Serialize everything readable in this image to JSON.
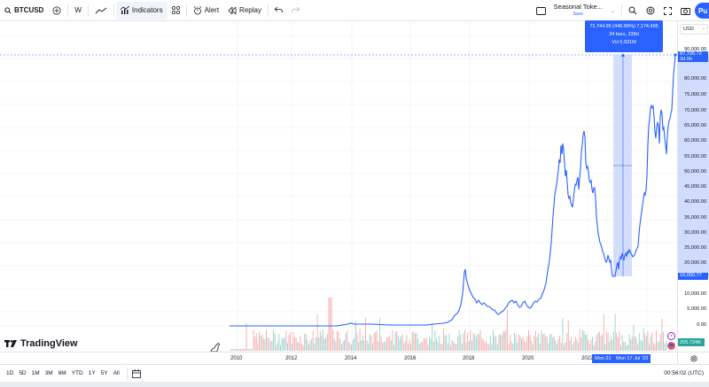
{
  "toolbar": {
    "symbol": "BTCUSD",
    "interval": "W",
    "indicators_label": "Indicators",
    "alert_label": "Alert",
    "replay_label": "Replay",
    "layout_name": "Seasonal Toke...",
    "layout_save": "Save",
    "publish_label": "Pu"
  },
  "price_axis": {
    "currency": "USD",
    "labels": [
      "90,000.00",
      "80,000.00",
      "75,000.00",
      "70,000.00",
      "65,000.00",
      "60,000.00",
      "55,000.00",
      "50,000.00",
      "45,000.00",
      "40,000.00",
      "35,000.00",
      "30,000.00",
      "25,000.00",
      "20,000.00",
      "10,000.00",
      "5,000.00",
      "0.00"
    ],
    "current_price": "87,795.72",
    "current_price_sub": "3d 0h",
    "range_low": "16,050.77",
    "volume_label": "205.724K"
  },
  "measure_tooltip": {
    "line1": "71,744.95 (446.99%) 7,174,495",
    "line2": "34 bars, 238d",
    "line3": "Vol 5.931M"
  },
  "time_axis": {
    "labels": [
      "2010",
      "2012",
      "2014",
      "2016",
      "2018",
      "2020",
      "2022"
    ],
    "range_start": "Mon 21",
    "range_end": "Mon 17 Jul '23"
  },
  "bottom": {
    "ranges": [
      "1D",
      "5D",
      "1M",
      "3M",
      "6M",
      "YTD",
      "1Y",
      "5Y",
      "All"
    ],
    "clock": "00:56:02 (UTC)"
  },
  "brand": {
    "name": "TradingView"
  },
  "colors": {
    "accent": "#2962ff",
    "line": "#2962ff",
    "volume_up": "#26a69a",
    "volume_down": "#ef5350",
    "range_fill": "#c5d3fb"
  },
  "chart_data": {
    "type": "line",
    "title": "BTCUSD, W",
    "xlabel": "",
    "ylabel": "USD",
    "x": [
      "2010",
      "2011",
      "2012",
      "2013",
      "2014",
      "2015",
      "2016",
      "2017",
      "2017.9",
      "2018.5",
      "2019",
      "2019.5",
      "2020",
      "2020.3",
      "2021",
      "2021.3",
      "2021.6",
      "2021.9",
      "2022.3",
      "2022.9",
      "2023.5",
      "2023.9",
      "2024.2",
      "2024.6",
      "2024.9"
    ],
    "values": [
      0,
      0,
      10,
      800,
      400,
      250,
      600,
      2500,
      19000,
      6500,
      3700,
      11000,
      7200,
      5000,
      30000,
      60000,
      33000,
      65000,
      40000,
      16500,
      30000,
      37000,
      71000,
      56000,
      87795
    ],
    "ylim": [
      0,
      92000
    ],
    "grid": true,
    "legend": "none"
  }
}
